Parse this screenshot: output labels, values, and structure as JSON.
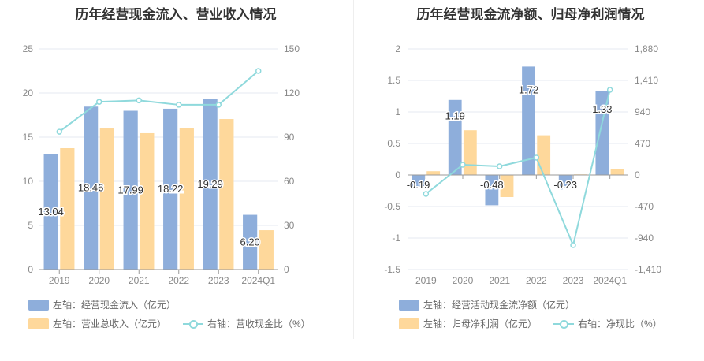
{
  "colors": {
    "bar1": "#8eaedb",
    "bar2": "#fed89b",
    "line": "#8fd9dc"
  },
  "chart_data": [
    {
      "type": "bar",
      "title": "历年经营现金流入、营业收入情况",
      "categories": [
        "2019",
        "2020",
        "2021",
        "2022",
        "2023",
        "2024Q1"
      ],
      "yleft": {
        "range": [
          0,
          25
        ],
        "ticks": [
          "0",
          "5",
          "10",
          "15",
          "20",
          "25"
        ]
      },
      "yright": {
        "range": [
          0,
          150
        ],
        "ticks": [
          "0",
          "30",
          "60",
          "90",
          "120",
          "150"
        ]
      },
      "series": [
        {
          "name": "左轴：经营现金流入（亿元）",
          "axis": "left",
          "kind": "bar",
          "values": [
            13.04,
            18.46,
            17.99,
            18.22,
            19.29,
            6.2
          ],
          "labels": [
            "13.04",
            "18.46",
            "17.99",
            "18.22",
            "19.29",
            "6.20"
          ]
        },
        {
          "name": "左轴：营业总收入（亿元）",
          "axis": "left",
          "kind": "bar",
          "values": [
            13.75,
            15.98,
            15.45,
            16.07,
            17.05,
            4.46
          ]
        },
        {
          "name": "右轴：营收现金比（%）",
          "axis": "right",
          "kind": "line",
          "values": [
            93.7,
            114,
            115,
            112,
            112,
            135
          ]
        }
      ],
      "grid": true,
      "legend": "bottom-left"
    },
    {
      "type": "bar",
      "title": "历年经营现金流净额、归母净利润情况",
      "categories": [
        "2019",
        "2020",
        "2021",
        "2022",
        "2023",
        "2024Q1"
      ],
      "yleft": {
        "range": [
          -1.5,
          2
        ],
        "ticks": [
          "-1.5",
          "-1",
          "-0.5",
          "0",
          "0.5",
          "1",
          "1.5",
          "2"
        ]
      },
      "yright": {
        "range": [
          -1410,
          1880
        ],
        "ticks": [
          "-1,410",
          "-940",
          "-470",
          "0",
          "470",
          "940",
          "1,410",
          "1,880"
        ]
      },
      "series": [
        {
          "name": "左轴：经营活动现金流净额（亿元）",
          "axis": "left",
          "kind": "bar",
          "values": [
            -0.19,
            1.19,
            -0.48,
            1.72,
            -0.23,
            1.33
          ],
          "labels": [
            "-0.19",
            "1.19",
            "-0.48",
            "1.72",
            "-0.23",
            "1.33"
          ]
        },
        {
          "name": "左轴：归母净利润（亿元）",
          "axis": "left",
          "kind": "bar",
          "values": [
            0.06,
            0.71,
            -0.35,
            0.63,
            0.01,
            0.1
          ]
        },
        {
          "name": "右轴：净现比（%）",
          "axis": "right",
          "kind": "line",
          "values": [
            -282,
            153,
            129,
            259,
            -1046,
            1269
          ]
        }
      ],
      "grid": true,
      "legend": "bottom-left"
    }
  ]
}
